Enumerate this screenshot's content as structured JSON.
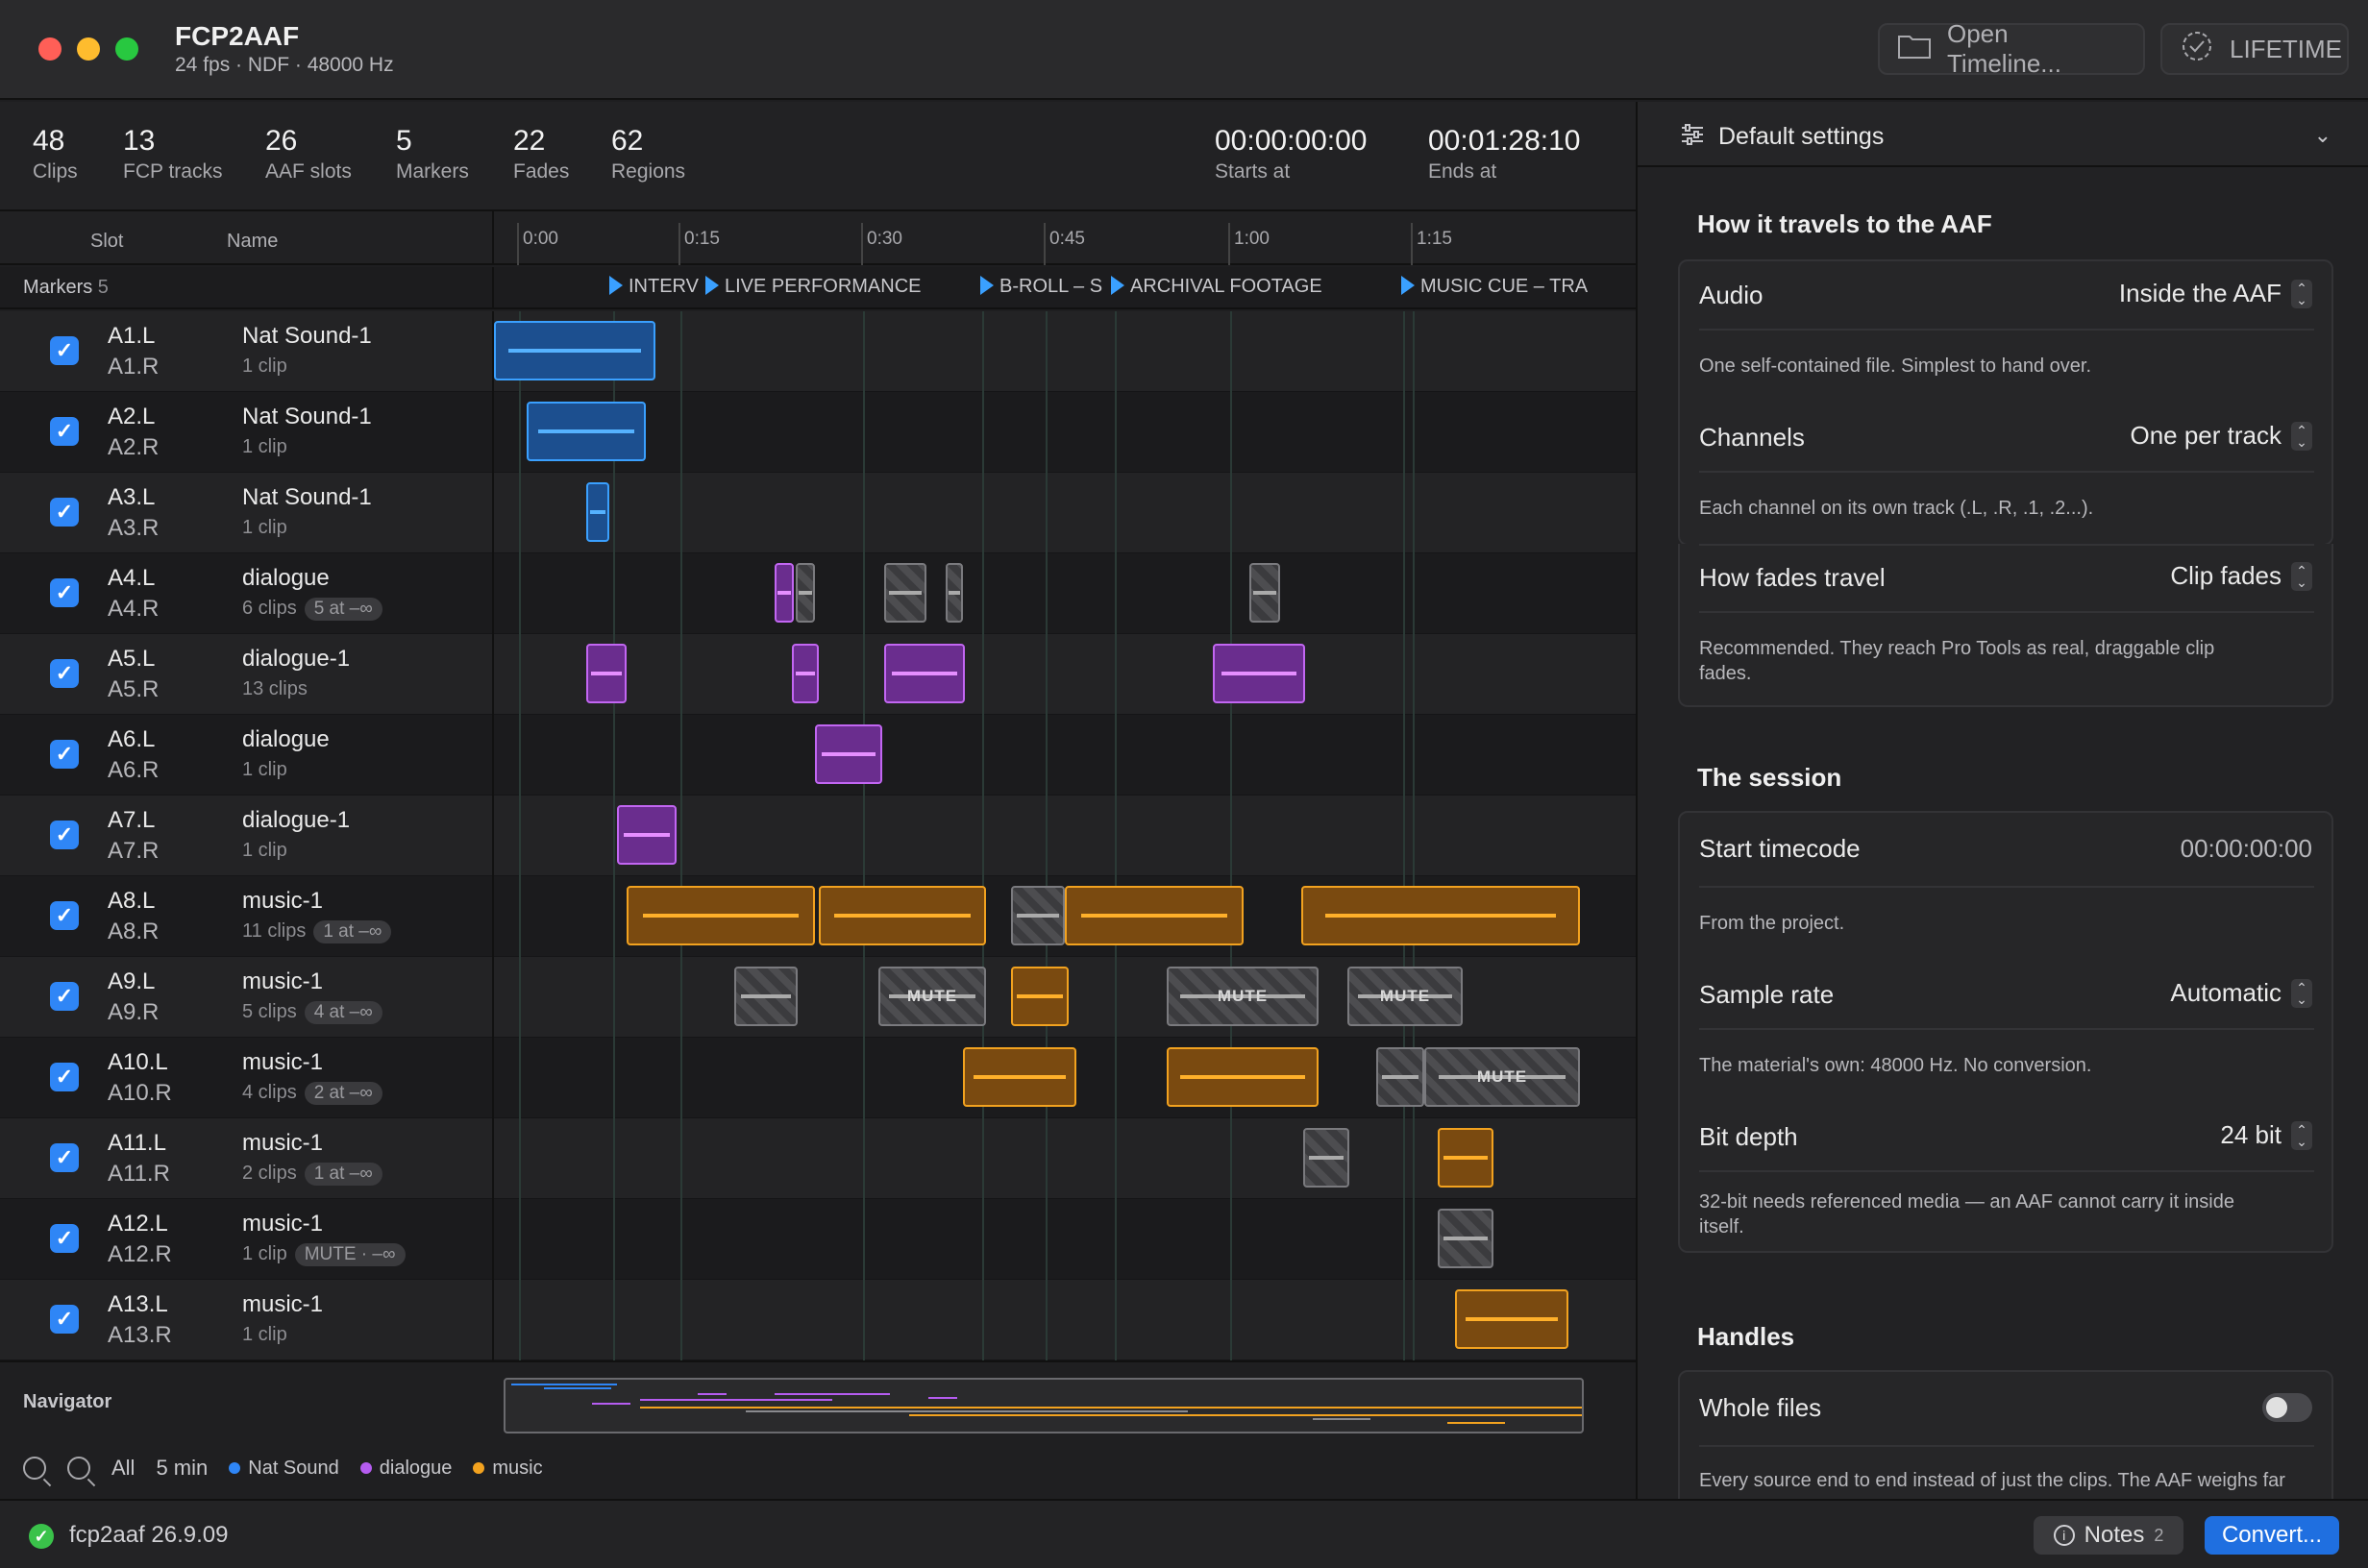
{
  "window": {
    "title": "FCP2AAF",
    "subtitle": "24 fps · NDF · 48000 Hz",
    "open_timeline_label": "Open Timeline...",
    "license_label": "LIFETIME"
  },
  "stats": [
    {
      "value": "48",
      "label": "Clips"
    },
    {
      "value": "13",
      "label": "FCP tracks"
    },
    {
      "value": "26",
      "label": "AAF slots"
    },
    {
      "value": "5",
      "label": "Markers"
    },
    {
      "value": "22",
      "label": "Fades"
    },
    {
      "value": "62",
      "label": "Regions"
    }
  ],
  "timecodes": {
    "start": "00:00:00:00",
    "start_label": "Starts at",
    "end": "00:01:28:10",
    "end_label": "Ends at"
  },
  "columns": {
    "slot": "Slot",
    "name": "Name"
  },
  "ruler_ticks": [
    "0:00",
    "0:15",
    "0:30",
    "0:45",
    "1:00",
    "1:15"
  ],
  "markers_row": {
    "label": "Markers",
    "count": "5"
  },
  "markers": [
    "INTERV",
    "LIVE PERFORMANCE",
    "B-ROLL – S",
    "ARCHIVAL FOOTAGE",
    "MUSIC CUE – TRA"
  ],
  "tracks": [
    {
      "slot_l": "A1.L",
      "slot_r": "A1.R",
      "name": "Nat Sound-1",
      "clips": "1 clip",
      "badge": "",
      "checked": true
    },
    {
      "slot_l": "A2.L",
      "slot_r": "A2.R",
      "name": "Nat Sound-1",
      "clips": "1 clip",
      "badge": "",
      "checked": true
    },
    {
      "slot_l": "A3.L",
      "slot_r": "A3.R",
      "name": "Nat Sound-1",
      "clips": "1 clip",
      "badge": "",
      "checked": true
    },
    {
      "slot_l": "A4.L",
      "slot_r": "A4.R",
      "name": "dialogue",
      "clips": "6 clips",
      "badge": "5 at –∞",
      "checked": true
    },
    {
      "slot_l": "A5.L",
      "slot_r": "A5.R",
      "name": "dialogue-1",
      "clips": "13 clips",
      "badge": "",
      "checked": true
    },
    {
      "slot_l": "A6.L",
      "slot_r": "A6.R",
      "name": "dialogue",
      "clips": "1 clip",
      "badge": "",
      "checked": true
    },
    {
      "slot_l": "A7.L",
      "slot_r": "A7.R",
      "name": "dialogue-1",
      "clips": "1 clip",
      "badge": "",
      "checked": true
    },
    {
      "slot_l": "A8.L",
      "slot_r": "A8.R",
      "name": "music-1",
      "clips": "11 clips",
      "badge": "1 at –∞",
      "checked": true
    },
    {
      "slot_l": "A9.L",
      "slot_r": "A9.R",
      "name": "music-1",
      "clips": "5 clips",
      "badge": "4 at –∞",
      "checked": true
    },
    {
      "slot_l": "A10.L",
      "slot_r": "A10.R",
      "name": "music-1",
      "clips": "4 clips",
      "badge": "2 at –∞",
      "checked": true
    },
    {
      "slot_l": "A11.L",
      "slot_r": "A11.R",
      "name": "music-1",
      "clips": "2 clips",
      "badge": "1 at –∞",
      "checked": true
    },
    {
      "slot_l": "A12.L",
      "slot_r": "A12.R",
      "name": "music-1",
      "clips": "1 clip",
      "badge": "MUTE · –∞",
      "checked": true
    },
    {
      "slot_l": "A13.L",
      "slot_r": "A13.R",
      "name": "music-1",
      "clips": "1 clip",
      "badge": "",
      "checked": true
    }
  ],
  "mute_label": "MUTE",
  "navigator": {
    "label": "Navigator",
    "zoom_all": "All",
    "zoom_5min": "5 min",
    "legend": [
      {
        "name": "Nat Sound",
        "color": "#2f86f6"
      },
      {
        "name": "dialogue",
        "color": "#b55cf0"
      },
      {
        "name": "music",
        "color": "#f2a21f"
      }
    ]
  },
  "status": {
    "version": "fcp2aaf 26.9.09",
    "notes_label": "Notes",
    "notes_count": "2",
    "convert_label": "Convert..."
  },
  "settings": {
    "header": "Default settings",
    "travel_title": "How it travels to the AAF",
    "audio_label": "Audio",
    "audio_value": "Inside the AAF",
    "audio_desc": "One self-contained file. Simplest to hand over.",
    "channels_label": "Channels",
    "channels_value": "One per track",
    "channels_desc": "Each channel on its own track (.L, .R, .1, .2...).",
    "fades_label": "How fades travel",
    "fades_value": "Clip fades",
    "fades_desc": "Recommended. They reach Pro Tools as real, draggable clip fades.",
    "session_title": "The session",
    "start_tc_label": "Start timecode",
    "start_tc_value": "00:00:00:00",
    "start_tc_desc": "From the project.",
    "sample_rate_label": "Sample rate",
    "sample_rate_value": "Automatic",
    "sample_rate_desc": "The material's own: 48000 Hz. No conversion.",
    "bit_depth_label": "Bit depth",
    "bit_depth_value": "24 bit",
    "bit_depth_desc": "32-bit needs referenced media — an AAF cannot carry it inside itself.",
    "handles_title": "Handles",
    "whole_files_label": "Whole files",
    "whole_files_on": false,
    "whole_files_desc": "Every source end to end instead of just the clips. The AAF weighs far more."
  },
  "colors": {
    "nat_sound": "#2f86f6",
    "dialogue": "#b55cf0",
    "music": "#f2a21f",
    "accent": "#1f6fe0"
  }
}
